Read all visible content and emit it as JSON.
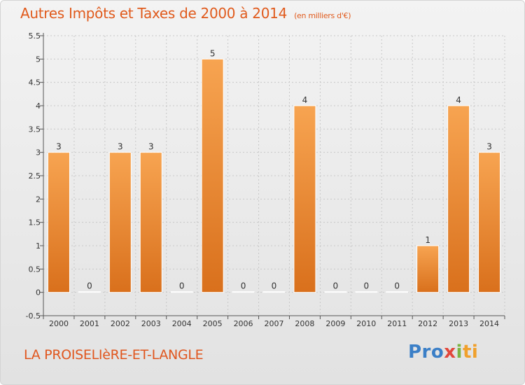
{
  "header": {
    "title": "Autres Impôts et Taxes de 2000 à 2014",
    "subtitle": "(en milliers d'€)"
  },
  "footer": {
    "commune": "LA PROISELIèRE-ET-LANGLE",
    "logo": [
      "Pro",
      "x",
      "i",
      "ti"
    ]
  },
  "colors": {
    "bar_top": "#f7a451",
    "bar_bottom": "#d9701c",
    "title": "#e05a1c",
    "grid": "#c8c8c8"
  },
  "chart_data": {
    "type": "bar",
    "categories": [
      "2000",
      "2001",
      "2002",
      "2003",
      "2004",
      "2005",
      "2006",
      "2007",
      "2008",
      "2009",
      "2010",
      "2011",
      "2012",
      "2013",
      "2014"
    ],
    "values": [
      3,
      0,
      3,
      3,
      0,
      5,
      0,
      0,
      4,
      0,
      0,
      0,
      1,
      4,
      3
    ],
    "ylim": [
      -0.5,
      5.5
    ],
    "yticks": [
      -0.5,
      0,
      0.5,
      1,
      1.5,
      2,
      2.5,
      3,
      3.5,
      4,
      4.5,
      5,
      5.5
    ],
    "ytick_labels": [
      "-0.5",
      "0",
      "0.5",
      "1",
      "1.5",
      "2",
      "2.5",
      "3",
      "3.5",
      "4",
      "4.5",
      "5",
      "5.5"
    ],
    "grid": true,
    "xlabel": "",
    "ylabel": ""
  }
}
